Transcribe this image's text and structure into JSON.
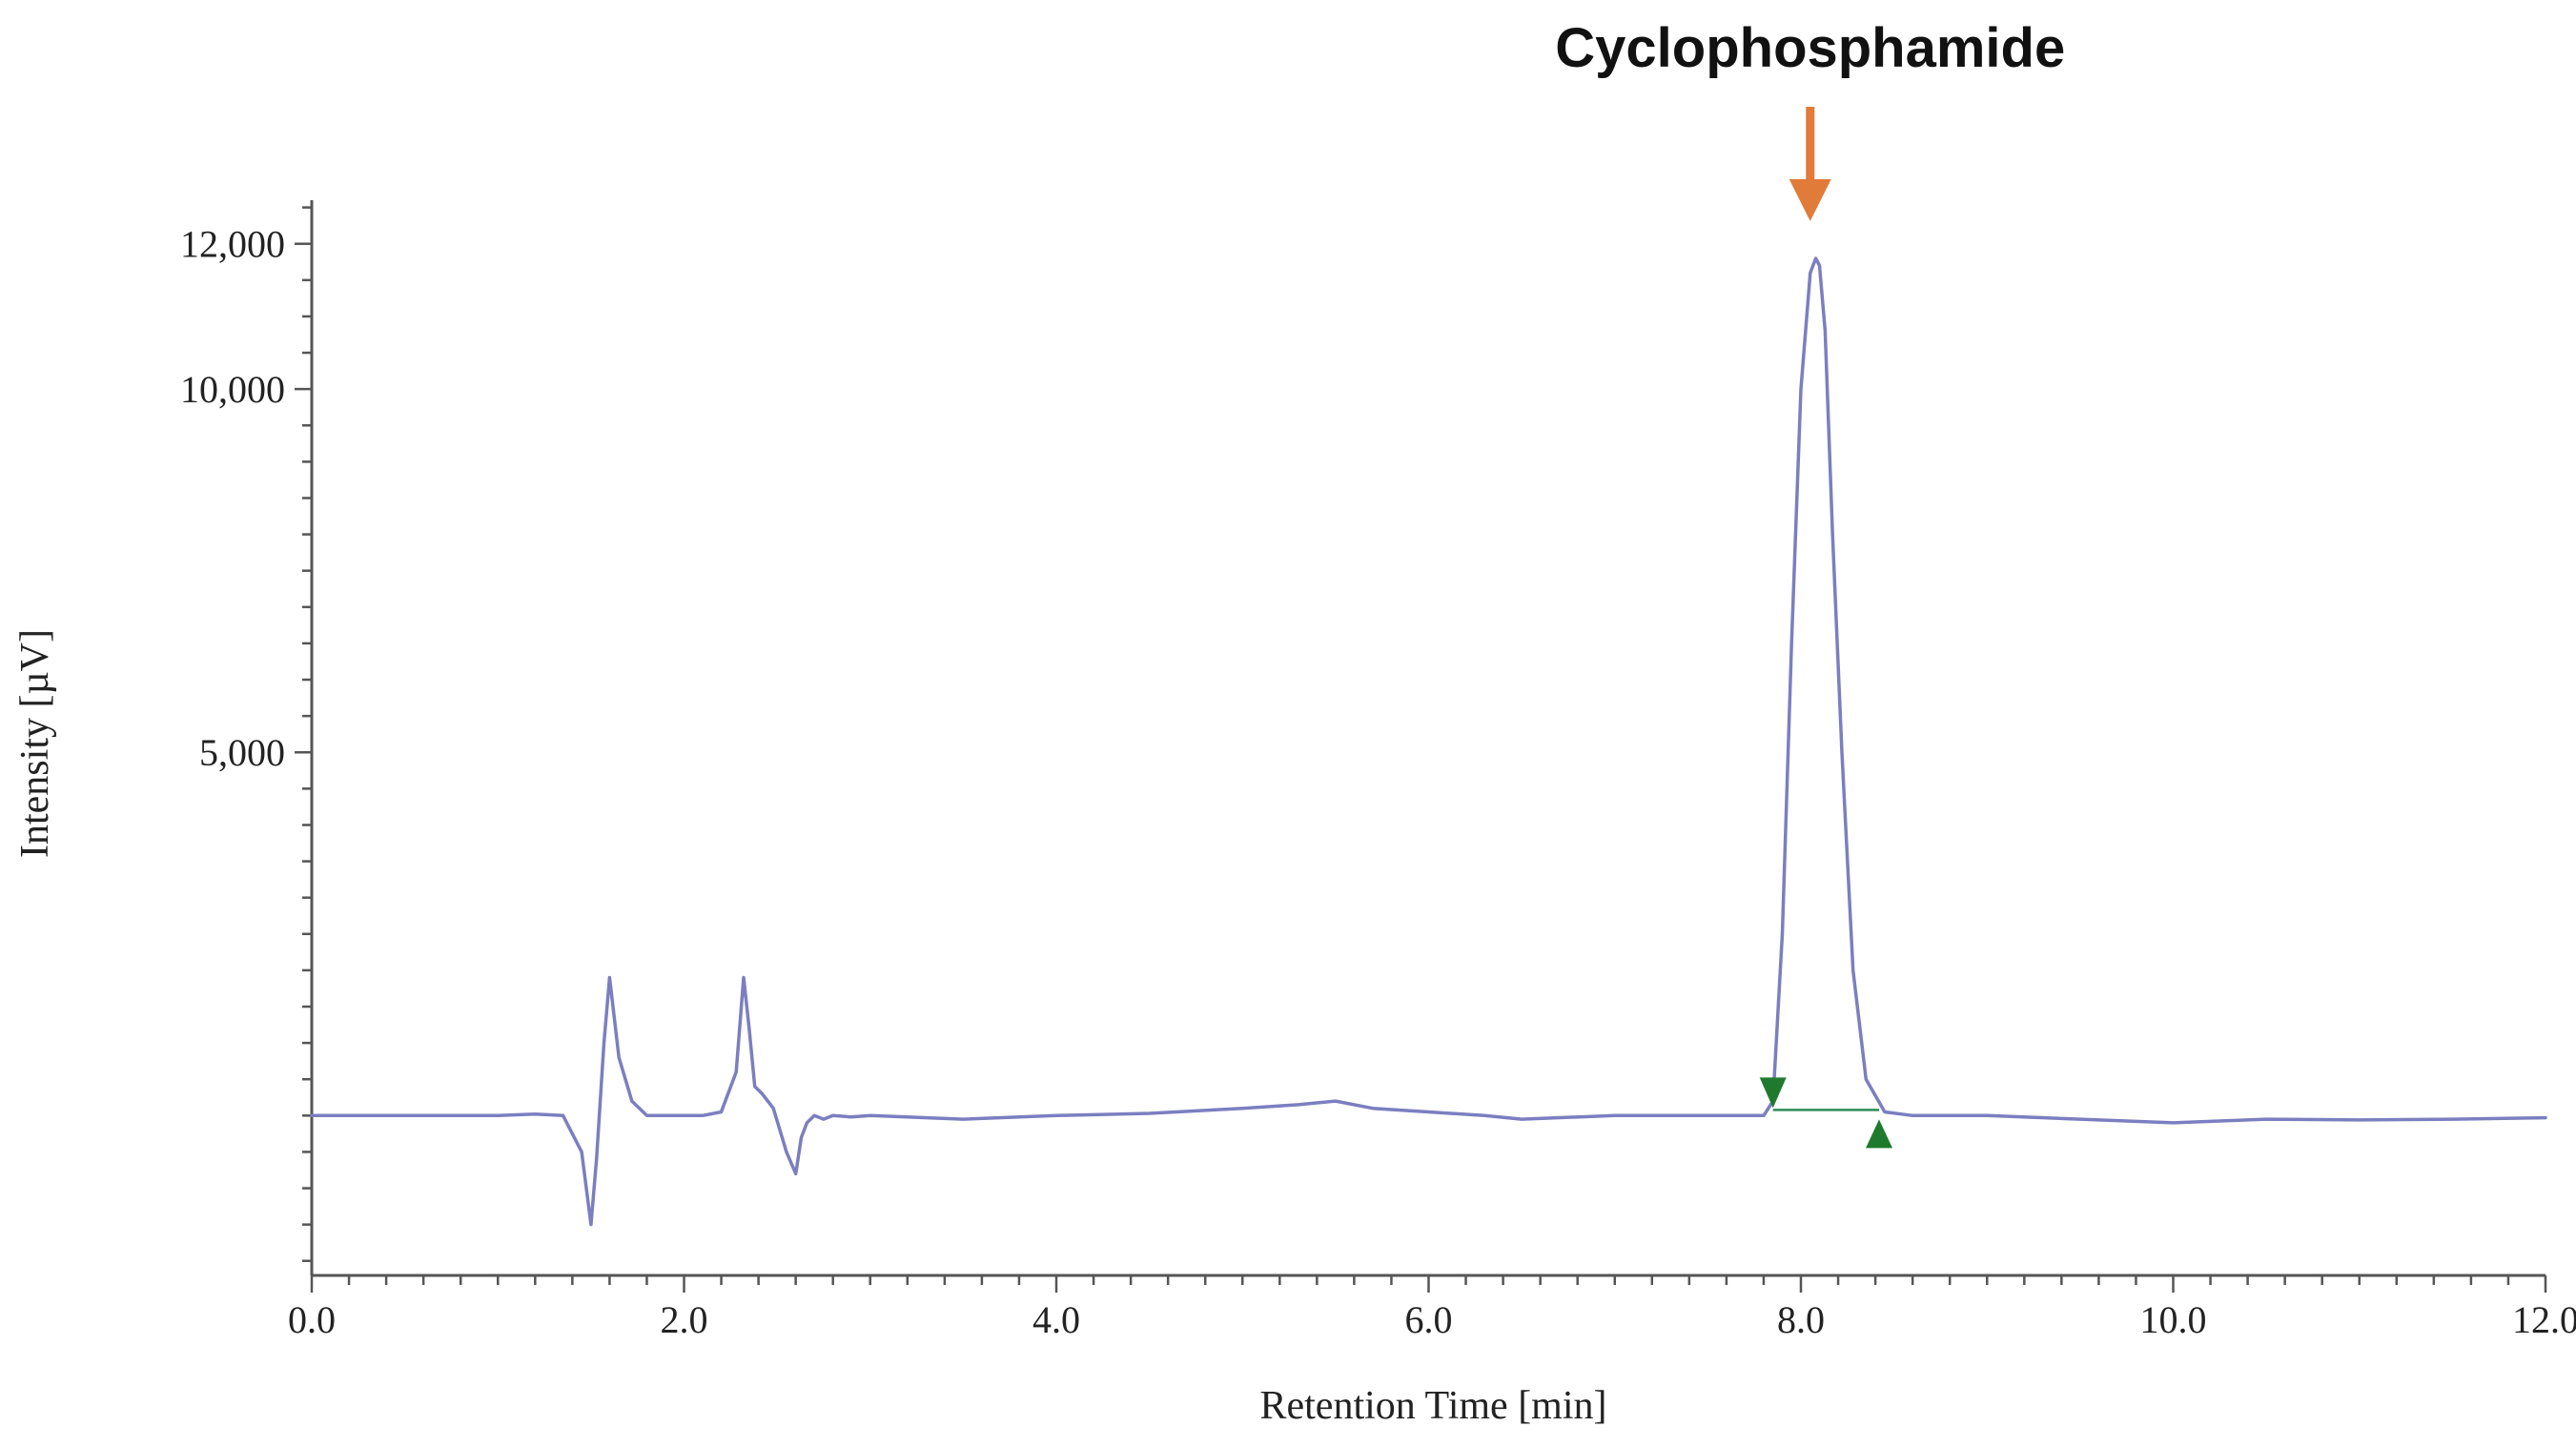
{
  "chart_data": {
    "type": "line",
    "title": "",
    "xlabel": "Retention Time [min]",
    "ylabel": "Intensity [µV]",
    "xlim": [
      0,
      12.0
    ],
    "ylim": [
      -2200,
      12600
    ],
    "x_ticks": [
      0.0,
      2.0,
      4.0,
      6.0,
      8.0,
      10.0,
      12.0
    ],
    "x_tick_labels": [
      "0.0",
      "2.0",
      "4.0",
      "6.0",
      "8.0",
      "10.0",
      "12.0"
    ],
    "y_ticks": [
      5000,
      10000,
      12000
    ],
    "y_tick_labels": [
      "5,000",
      "10,000",
      "12,000"
    ],
    "grid": false,
    "series": [
      {
        "color": "#7b7fc0",
        "x": [
          0.0,
          1.0,
          1.2,
          1.35,
          1.45,
          1.5,
          1.53,
          1.57,
          1.6,
          1.65,
          1.72,
          1.8,
          1.9,
          2.0,
          2.1,
          2.2,
          2.28,
          2.32,
          2.35,
          2.38,
          2.42,
          2.48,
          2.55,
          2.6,
          2.63,
          2.66,
          2.7,
          2.75,
          2.8,
          2.9,
          3.0,
          3.5,
          4.0,
          4.5,
          5.0,
          5.3,
          5.5,
          5.7,
          6.0,
          6.3,
          6.5,
          7.0,
          7.5,
          7.8,
          7.85,
          7.9,
          7.95,
          8.0,
          8.05,
          8.08,
          8.1,
          8.13,
          8.17,
          8.22,
          8.28,
          8.35,
          8.45,
          8.6,
          9.0,
          9.5,
          10.0,
          10.5,
          11.0,
          11.5,
          12.0
        ],
        "y": [
          0,
          0,
          20,
          0,
          -500,
          -1500,
          -600,
          1000,
          1900,
          800,
          200,
          0,
          0,
          0,
          0,
          50,
          600,
          1900,
          1200,
          400,
          300,
          100,
          -500,
          -800,
          -300,
          -100,
          0,
          -50,
          0,
          -20,
          0,
          -50,
          0,
          30,
          100,
          150,
          200,
          100,
          50,
          0,
          -50,
          0,
          0,
          0,
          200,
          2500,
          6500,
          10000,
          11600,
          11800,
          11700,
          10800,
          8000,
          5000,
          2000,
          500,
          50,
          0,
          0,
          -50,
          -100,
          -50,
          -60,
          -50,
          -30
        ]
      }
    ],
    "baseline": {
      "color": "#2e8b57",
      "x_start": 7.85,
      "x_end": 8.42,
      "value": 0
    },
    "peak_markers": [
      {
        "name": "peak-start",
        "x": 7.85,
        "y": 0,
        "direction": "down",
        "color": "#1f7a2e"
      },
      {
        "name": "peak-end",
        "x": 8.42,
        "y": 0,
        "direction": "up",
        "color": "#1f7a2e"
      }
    ],
    "annotations": [
      {
        "text": "Cyclophosphamide",
        "x": 8.05,
        "y": 11800,
        "arrow_color": "#e07b39"
      }
    ]
  }
}
